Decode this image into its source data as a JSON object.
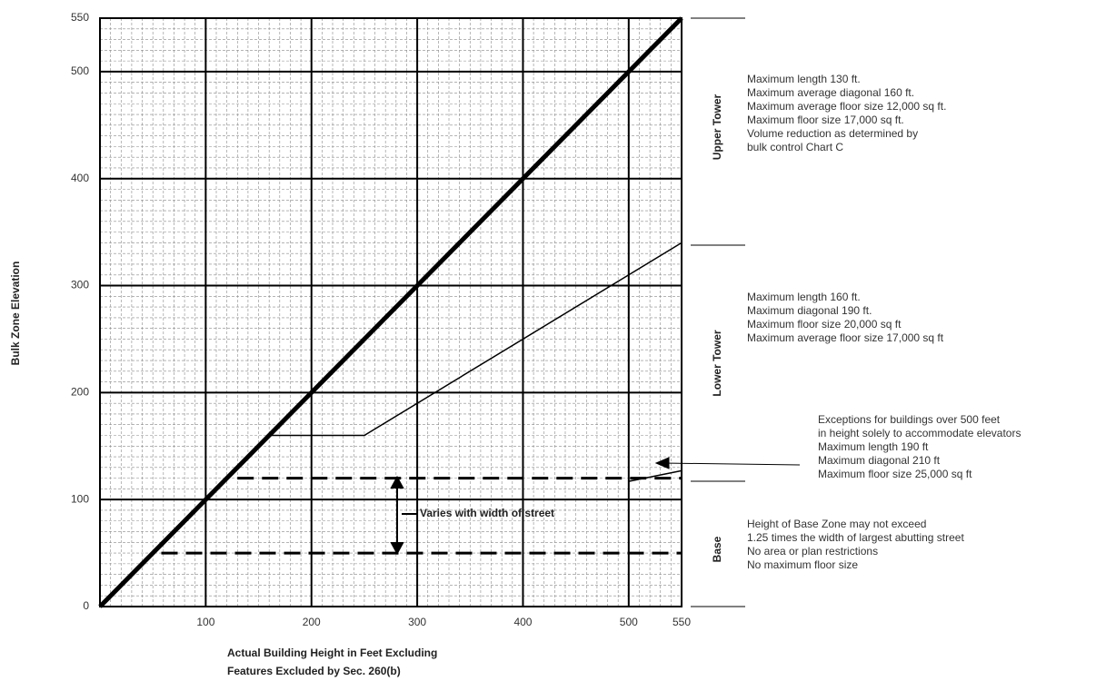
{
  "chart_data": {
    "type": "line",
    "x_label": [
      "Actual Building Height in Feet Excluding",
      "Features Excluded by Sec. 260(b)"
    ],
    "y_label": "Bulk Zone Elevation",
    "xlim": [
      0,
      550
    ],
    "ylim": [
      0,
      550
    ],
    "xticks": [
      100,
      200,
      300,
      400,
      500,
      550
    ],
    "yticks": [
      0,
      100,
      200,
      300,
      400,
      500,
      550
    ],
    "grid": true,
    "series": [
      {
        "color": "#000000",
        "width": 5,
        "dash": false,
        "x": [
          0,
          550
        ],
        "values": [
          0,
          550
        ]
      },
      {
        "color": "#000000",
        "width": 1.5,
        "dash": false,
        "x": [
          160,
          250,
          550
        ],
        "values": [
          160,
          160,
          340
        ]
      },
      {
        "color": "#000000",
        "width": 1.5,
        "dash": false,
        "x": [
          500,
          550
        ],
        "values": [
          117,
          127
        ]
      },
      {
        "color": "#000000",
        "width": 3,
        "dash": true,
        "x": [
          130,
          550
        ],
        "values": [
          120,
          120
        ]
      },
      {
        "color": "#000000",
        "width": 3,
        "dash": true,
        "x": [
          58,
          550
        ],
        "values": [
          50,
          50
        ]
      }
    ],
    "street_note": "Varies with width of street",
    "zones": [
      {
        "label": "Upper Tower",
        "notes": [
          "Maximum length 130 ft.",
          "Maximum average diagonal 160 ft.",
          "Maximum average floor size 12,000 sq ft.",
          "Maximum floor size 17,000 sq ft.",
          "Volume reduction as determined by",
          "bulk control Chart C"
        ]
      },
      {
        "label": "Lower Tower",
        "notes": [
          "Maximum length 160 ft.",
          "Maximum diagonal 190 ft.",
          "Maximum floor size 20,000 sq ft",
          "Maximum average floor size 17,000 sq ft"
        ]
      },
      {
        "notes": [
          "Exceptions for buildings over 500 feet",
          "in height solely to accommodate elevators",
          "Maximum length 190 ft",
          "Maximum diagonal 210 ft",
          "Maximum floor size 25,000 sq ft"
        ]
      },
      {
        "label": "Base",
        "notes": [
          "Height of Base Zone may not exceed",
          "1.25 times the width of largest abutting street",
          "No area or plan restrictions",
          "No maximum floor size"
        ]
      }
    ]
  }
}
